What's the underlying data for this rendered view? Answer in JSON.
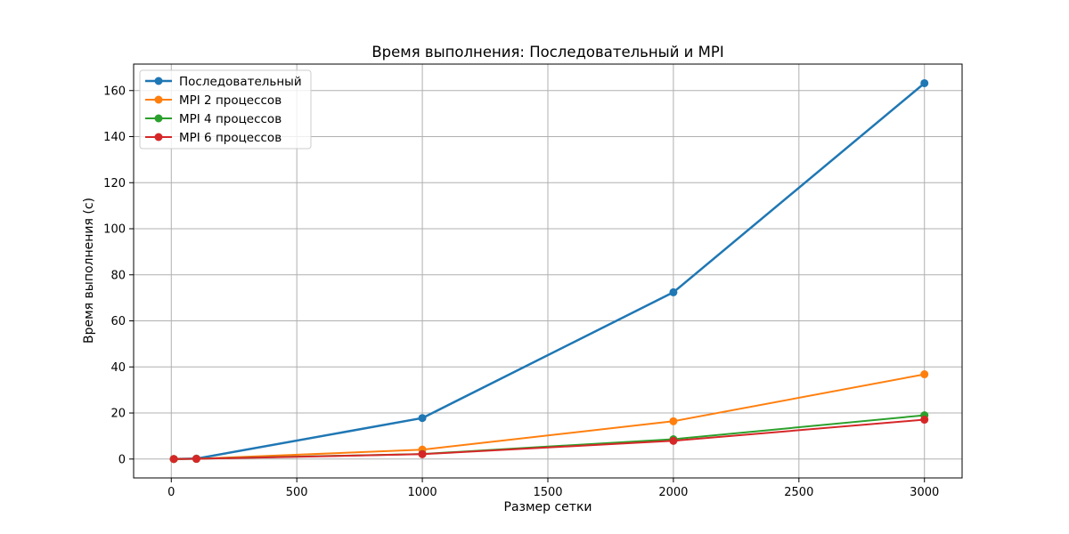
{
  "chart_data": {
    "type": "line",
    "title": "Время выполнения: Последовательный и MPI",
    "xlabel": "Размер сетки",
    "ylabel": "Время выполнения (с)",
    "xlim": [
      -150,
      3150
    ],
    "ylim": [
      -8.2,
      171.5
    ],
    "xticks": [
      0,
      500,
      1000,
      1500,
      2000,
      2500,
      3000
    ],
    "yticks": [
      0,
      20,
      40,
      60,
      80,
      100,
      120,
      140,
      160
    ],
    "grid": true,
    "legend_position": "upper-left",
    "x": [
      10,
      100,
      1000,
      2000,
      3000
    ],
    "series": [
      {
        "name": "Последовательный",
        "color": "#1f77b4",
        "values": [
          0.01,
          0.2,
          17.8,
          72.4,
          163.2
        ],
        "line_width": "bold"
      },
      {
        "name": "MPI 2 процессов",
        "color": "#ff7f0e",
        "values": [
          0.01,
          0.1,
          4.1,
          16.4,
          36.8
        ]
      },
      {
        "name": "MPI 4 процессов",
        "color": "#2ca02c",
        "values": [
          0.01,
          0.1,
          2.2,
          8.6,
          19.0
        ]
      },
      {
        "name": "MPI 6 процессов",
        "color": "#d62728",
        "values": [
          0.01,
          0.1,
          2.1,
          7.9,
          17.1
        ]
      }
    ]
  }
}
